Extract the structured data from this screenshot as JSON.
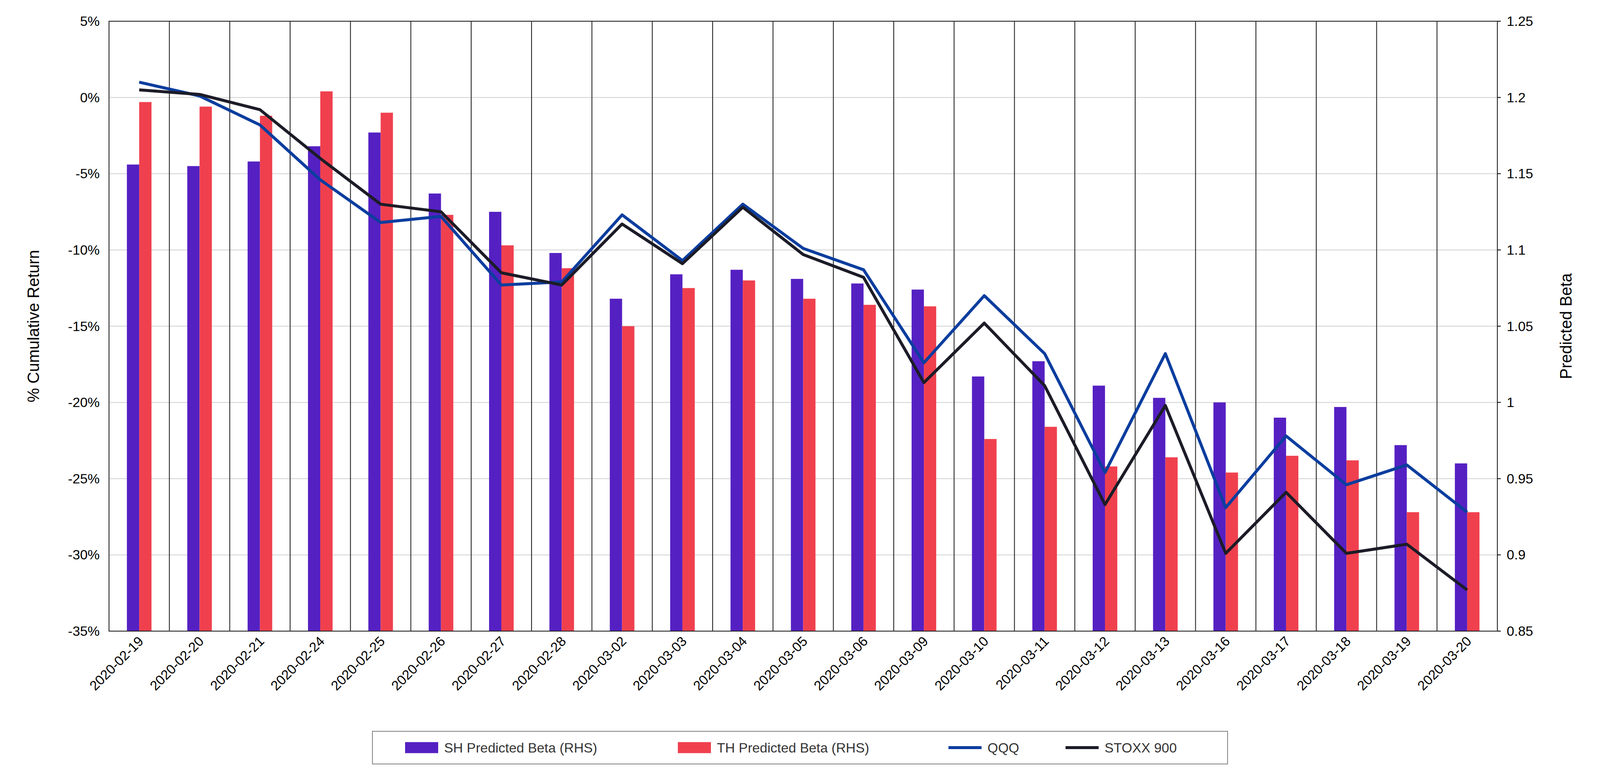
{
  "chart_data": {
    "type": "bar",
    "y_label": "% Cumulative Return",
    "y2_label": "Predicted Beta",
    "categories": [
      "2020-02-19",
      "2020-02-20",
      "2020-02-21",
      "2020-02-24",
      "2020-02-25",
      "2020-02-26",
      "2020-02-27",
      "2020-02-28",
      "2020-03-02",
      "2020-03-03",
      "2020-03-04",
      "2020-03-05",
      "2020-03-06",
      "2020-03-09",
      "2020-03-10",
      "2020-03-11",
      "2020-03-12",
      "2020-03-13",
      "2020-03-16",
      "2020-03-17",
      "2020-03-18",
      "2020-03-19",
      "2020-03-20"
    ],
    "series": [
      {
        "name": "SH Predicted Beta (RHS)",
        "type": "bar",
        "axis": "y2",
        "color": "#5520c2",
        "values": [
          1.156,
          1.155,
          1.158,
          1.168,
          1.177,
          1.137,
          1.125,
          1.098,
          1.068,
          1.084,
          1.087,
          1.081,
          1.078,
          1.074,
          1.017,
          1.027,
          1.011,
          1.003,
          1.0,
          0.99,
          0.997,
          0.972,
          0.96
        ]
      },
      {
        "name": "TH Predicted Beta (RHS)",
        "type": "bar",
        "axis": "y2",
        "color": "#f0404e",
        "values": [
          1.197,
          1.194,
          1.188,
          1.204,
          1.19,
          1.123,
          1.103,
          1.088,
          1.05,
          1.075,
          1.08,
          1.068,
          1.064,
          1.063,
          0.976,
          0.984,
          0.958,
          0.964,
          0.954,
          0.965,
          0.962,
          0.928,
          0.928
        ]
      },
      {
        "name": "QQQ",
        "type": "line",
        "color": "#0b3d9e",
        "values": [
          1.0,
          0.1,
          -1.8,
          -5.4,
          -8.2,
          -7.8,
          -12.3,
          -12.1,
          -7.7,
          -10.7,
          -7.0,
          -9.9,
          -11.3,
          -17.4,
          -13.0,
          -16.8,
          -24.6,
          -16.8,
          -26.9,
          -22.2,
          -25.4,
          -24.1,
          -27.2
        ]
      },
      {
        "name": "STOXX 900",
        "type": "line",
        "color": "#1c1c28",
        "values": [
          0.5,
          0.2,
          -0.8,
          -4.0,
          -7.0,
          -7.5,
          -11.5,
          -12.3,
          -8.3,
          -10.9,
          -7.2,
          -10.3,
          -11.8,
          -18.7,
          -14.8,
          -18.9,
          -26.7,
          -20.2,
          -29.9,
          -25.9,
          -29.9,
          -29.3,
          -32.3
        ]
      }
    ],
    "ylim": [
      -35,
      5
    ],
    "yticks": [
      {
        "value": -35,
        "label": "-35%"
      },
      {
        "value": -30,
        "label": "-30%"
      },
      {
        "value": -25,
        "label": "-25%"
      },
      {
        "value": -20,
        "label": "-20%"
      },
      {
        "value": -15,
        "label": "-15%"
      },
      {
        "value": -10,
        "label": "-10%"
      },
      {
        "value": -5,
        "label": "-5%"
      },
      {
        "value": 0,
        "label": "0%"
      },
      {
        "value": 5,
        "label": "5%"
      }
    ],
    "y2lim": [
      0.85,
      1.25
    ],
    "y2ticks": [
      0.85,
      0.9,
      0.95,
      1,
      1.05,
      1.1,
      1.15,
      1.2,
      1.25
    ],
    "grid": true,
    "legend": "bottom"
  }
}
